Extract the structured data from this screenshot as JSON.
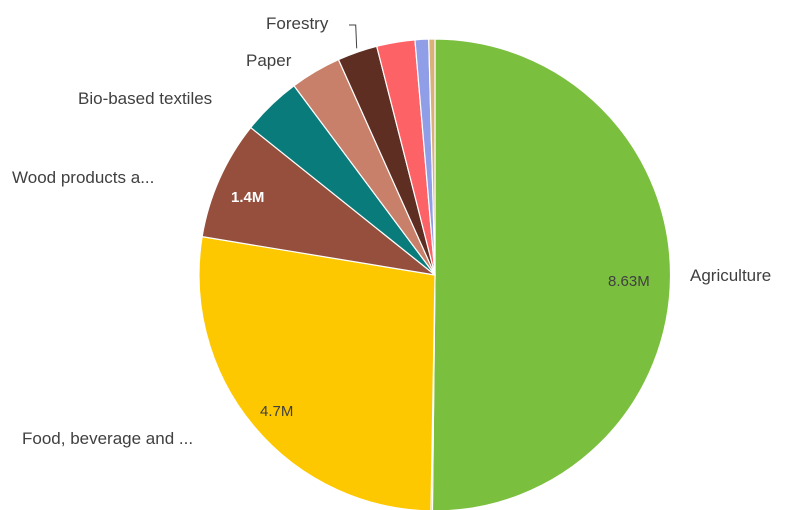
{
  "chart_data": {
    "type": "pie",
    "title": "",
    "legend": "none",
    "grid": false,
    "start_angle_deg": 0,
    "direction": "clockwise",
    "slices": [
      {
        "category": "Agriculture",
        "value": 8630000,
        "color": "#7bbf3e",
        "value_label": "8.63M",
        "value_label_color": "#404040"
      },
      {
        "category": "",
        "value": 17000,
        "color": "#b07a35",
        "value_label": ""
      },
      {
        "category": "Food, beverage and ...",
        "value": 4700000,
        "color": "#fdc800",
        "value_label": "4.7M",
        "value_label_color": "#404040"
      },
      {
        "category": "Wood products a...",
        "value": 1400000,
        "color": "#954f3c",
        "value_label": "1.4M",
        "value_label_color": "#ffffff"
      },
      {
        "category": "Bio-based textiles",
        "value": 700000,
        "color": "#097b7a",
        "value_label": ""
      },
      {
        "category": "Paper",
        "value": 600000,
        "color": "#c8806a",
        "value_label": ""
      },
      {
        "category": "Forestry",
        "value": 470000,
        "color": "#5e2e22",
        "value_label": ""
      },
      {
        "category": "",
        "value": 450000,
        "color": "#fd6366",
        "value_label": ""
      },
      {
        "category": "",
        "value": 160000,
        "color": "#8f9ee6",
        "value_label": ""
      },
      {
        "category": "",
        "value": 73000,
        "color": "#d9b27a",
        "value_label": ""
      }
    ]
  }
}
